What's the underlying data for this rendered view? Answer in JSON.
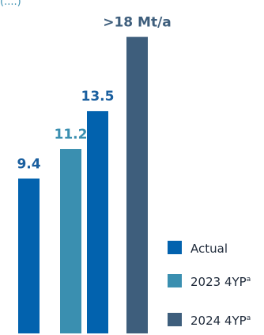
{
  "partial_top_text": "(....)",
  "colors": {
    "actual": "#0262ae",
    "fyp_2023": "#3a8fb0",
    "fyp_2024": "#3e5e7c",
    "label_actual": "#1a5f9f",
    "label_2023": "#3a8fb0",
    "label_2024": "#3e5e7c"
  },
  "chart_data": {
    "type": "bar",
    "title": "",
    "xlabel": "",
    "ylabel": "",
    "ylim": [
      0,
      20
    ],
    "grid": false,
    "legend_placement": "right",
    "series": [
      {
        "name": "Actual",
        "series_key": "actual"
      },
      {
        "name": "2023 4YP",
        "superscript": "a",
        "series_key": "fyp_2023"
      },
      {
        "name": "2024 4YP",
        "superscript": "a",
        "series_key": "fyp_2024"
      }
    ],
    "bars": [
      {
        "value": 9.4,
        "label": "9.4",
        "series_key": "actual"
      },
      {
        "value": 11.2,
        "label": "11.2",
        "series_key": "fyp_2023"
      },
      {
        "value": 13.5,
        "label": "13.5",
        "series_key": "actual"
      },
      {
        "value": 18,
        "label": ">18 Mt/a",
        "series_key": "fyp_2024"
      }
    ]
  }
}
